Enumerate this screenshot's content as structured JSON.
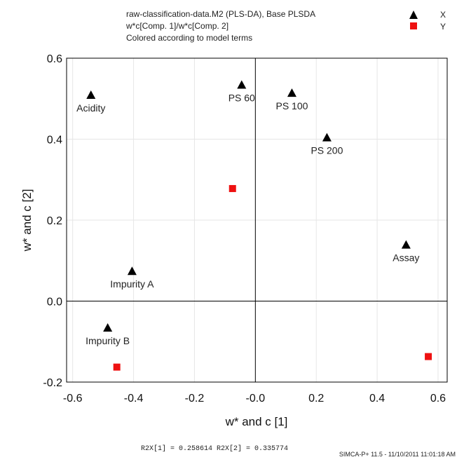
{
  "title_lines": [
    "raw-classification-data.M2 (PLS-DA), Base PLSDA",
    "w*c[Comp. 1]/w*c[Comp. 2]",
    "Colored according to model terms"
  ],
  "legend": [
    {
      "label": "X",
      "marker": "triangle",
      "color": "#000000"
    },
    {
      "label": "Y",
      "marker": "square",
      "color": "#ee1111"
    }
  ],
  "footer": {
    "stats": "R2X[1] = 0.258614   R2X[2] = 0.335774",
    "software": "SIMCA-P+ 11.5 - 11/10/2011 11:01:18 AM"
  },
  "chart_data": {
    "type": "scatter",
    "xlabel": "w* and c [1]",
    "ylabel": "w* and c [2]",
    "xlim": [
      -0.62,
      0.63
    ],
    "ylim": [
      -0.2,
      0.6
    ],
    "xticks": [
      "-0.6",
      "-0.4",
      "-0.2",
      "-0.0",
      "0.2",
      "0.4",
      "0.6"
    ],
    "yticks": [
      "0.6",
      "0.4",
      "0.2",
      "0.0",
      "-0.2"
    ],
    "grid": true,
    "legend_position": "top-right",
    "series": [
      {
        "name": "X",
        "marker": "triangle",
        "color": "#000000",
        "points": [
          {
            "label": "Acidity",
            "x": -0.54,
            "y": 0.51,
            "label_pos": "below"
          },
          {
            "label": "PS 60",
            "x": -0.045,
            "y": 0.535,
            "label_pos": "below"
          },
          {
            "label": "PS 100",
            "x": 0.12,
            "y": 0.515,
            "label_pos": "below"
          },
          {
            "label": "PS 200",
            "x": 0.235,
            "y": 0.405,
            "label_pos": "below"
          },
          {
            "label": "Assay",
            "x": 0.495,
            "y": 0.14,
            "label_pos": "below"
          },
          {
            "label": "Impurity A",
            "x": -0.405,
            "y": 0.075,
            "label_pos": "below"
          },
          {
            "label": "Impurity B",
            "x": -0.485,
            "y": -0.065,
            "label_pos": "below"
          }
        ]
      },
      {
        "name": "Y",
        "marker": "square",
        "color": "#ee1111",
        "points": [
          {
            "label": "",
            "x": -0.075,
            "y": 0.278
          },
          {
            "label": "",
            "x": -0.455,
            "y": -0.163
          },
          {
            "label": "",
            "x": 0.568,
            "y": -0.137
          }
        ]
      }
    ]
  }
}
